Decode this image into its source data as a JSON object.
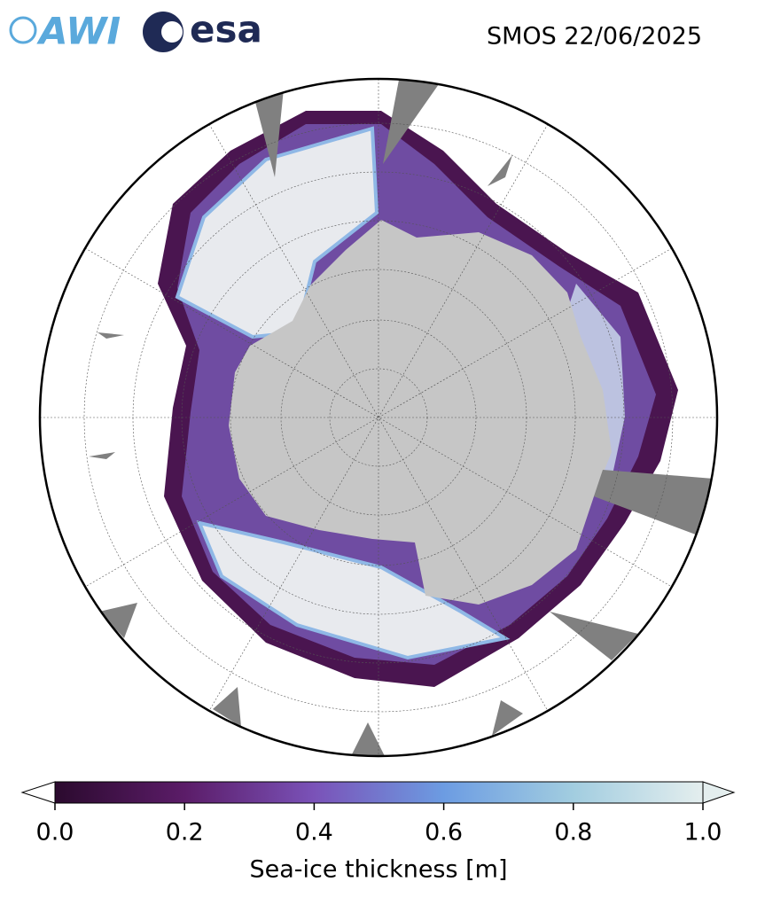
{
  "header": {
    "title": "SMOS 22/06/2025",
    "logos": [
      "AWI",
      "esa"
    ]
  },
  "colorbar": {
    "label": "Sea-ice thickness [m]",
    "lim": [
      0,
      1
    ],
    "ticks": [
      {
        "value": 0,
        "label": "0.0"
      },
      {
        "value": 0.2,
        "label": "0.2"
      },
      {
        "value": 0.4,
        "label": "0.4"
      },
      {
        "value": 0.6,
        "label": "0.6"
      },
      {
        "value": 0.8,
        "label": "0.8"
      },
      {
        "value": 1,
        "label": "1.0"
      }
    ],
    "colors": [
      "#2b0a2e",
      "#5b1c68",
      "#7a52b8",
      "#6c9ce2",
      "#a2cde0",
      "#e4eeee"
    ]
  }
}
